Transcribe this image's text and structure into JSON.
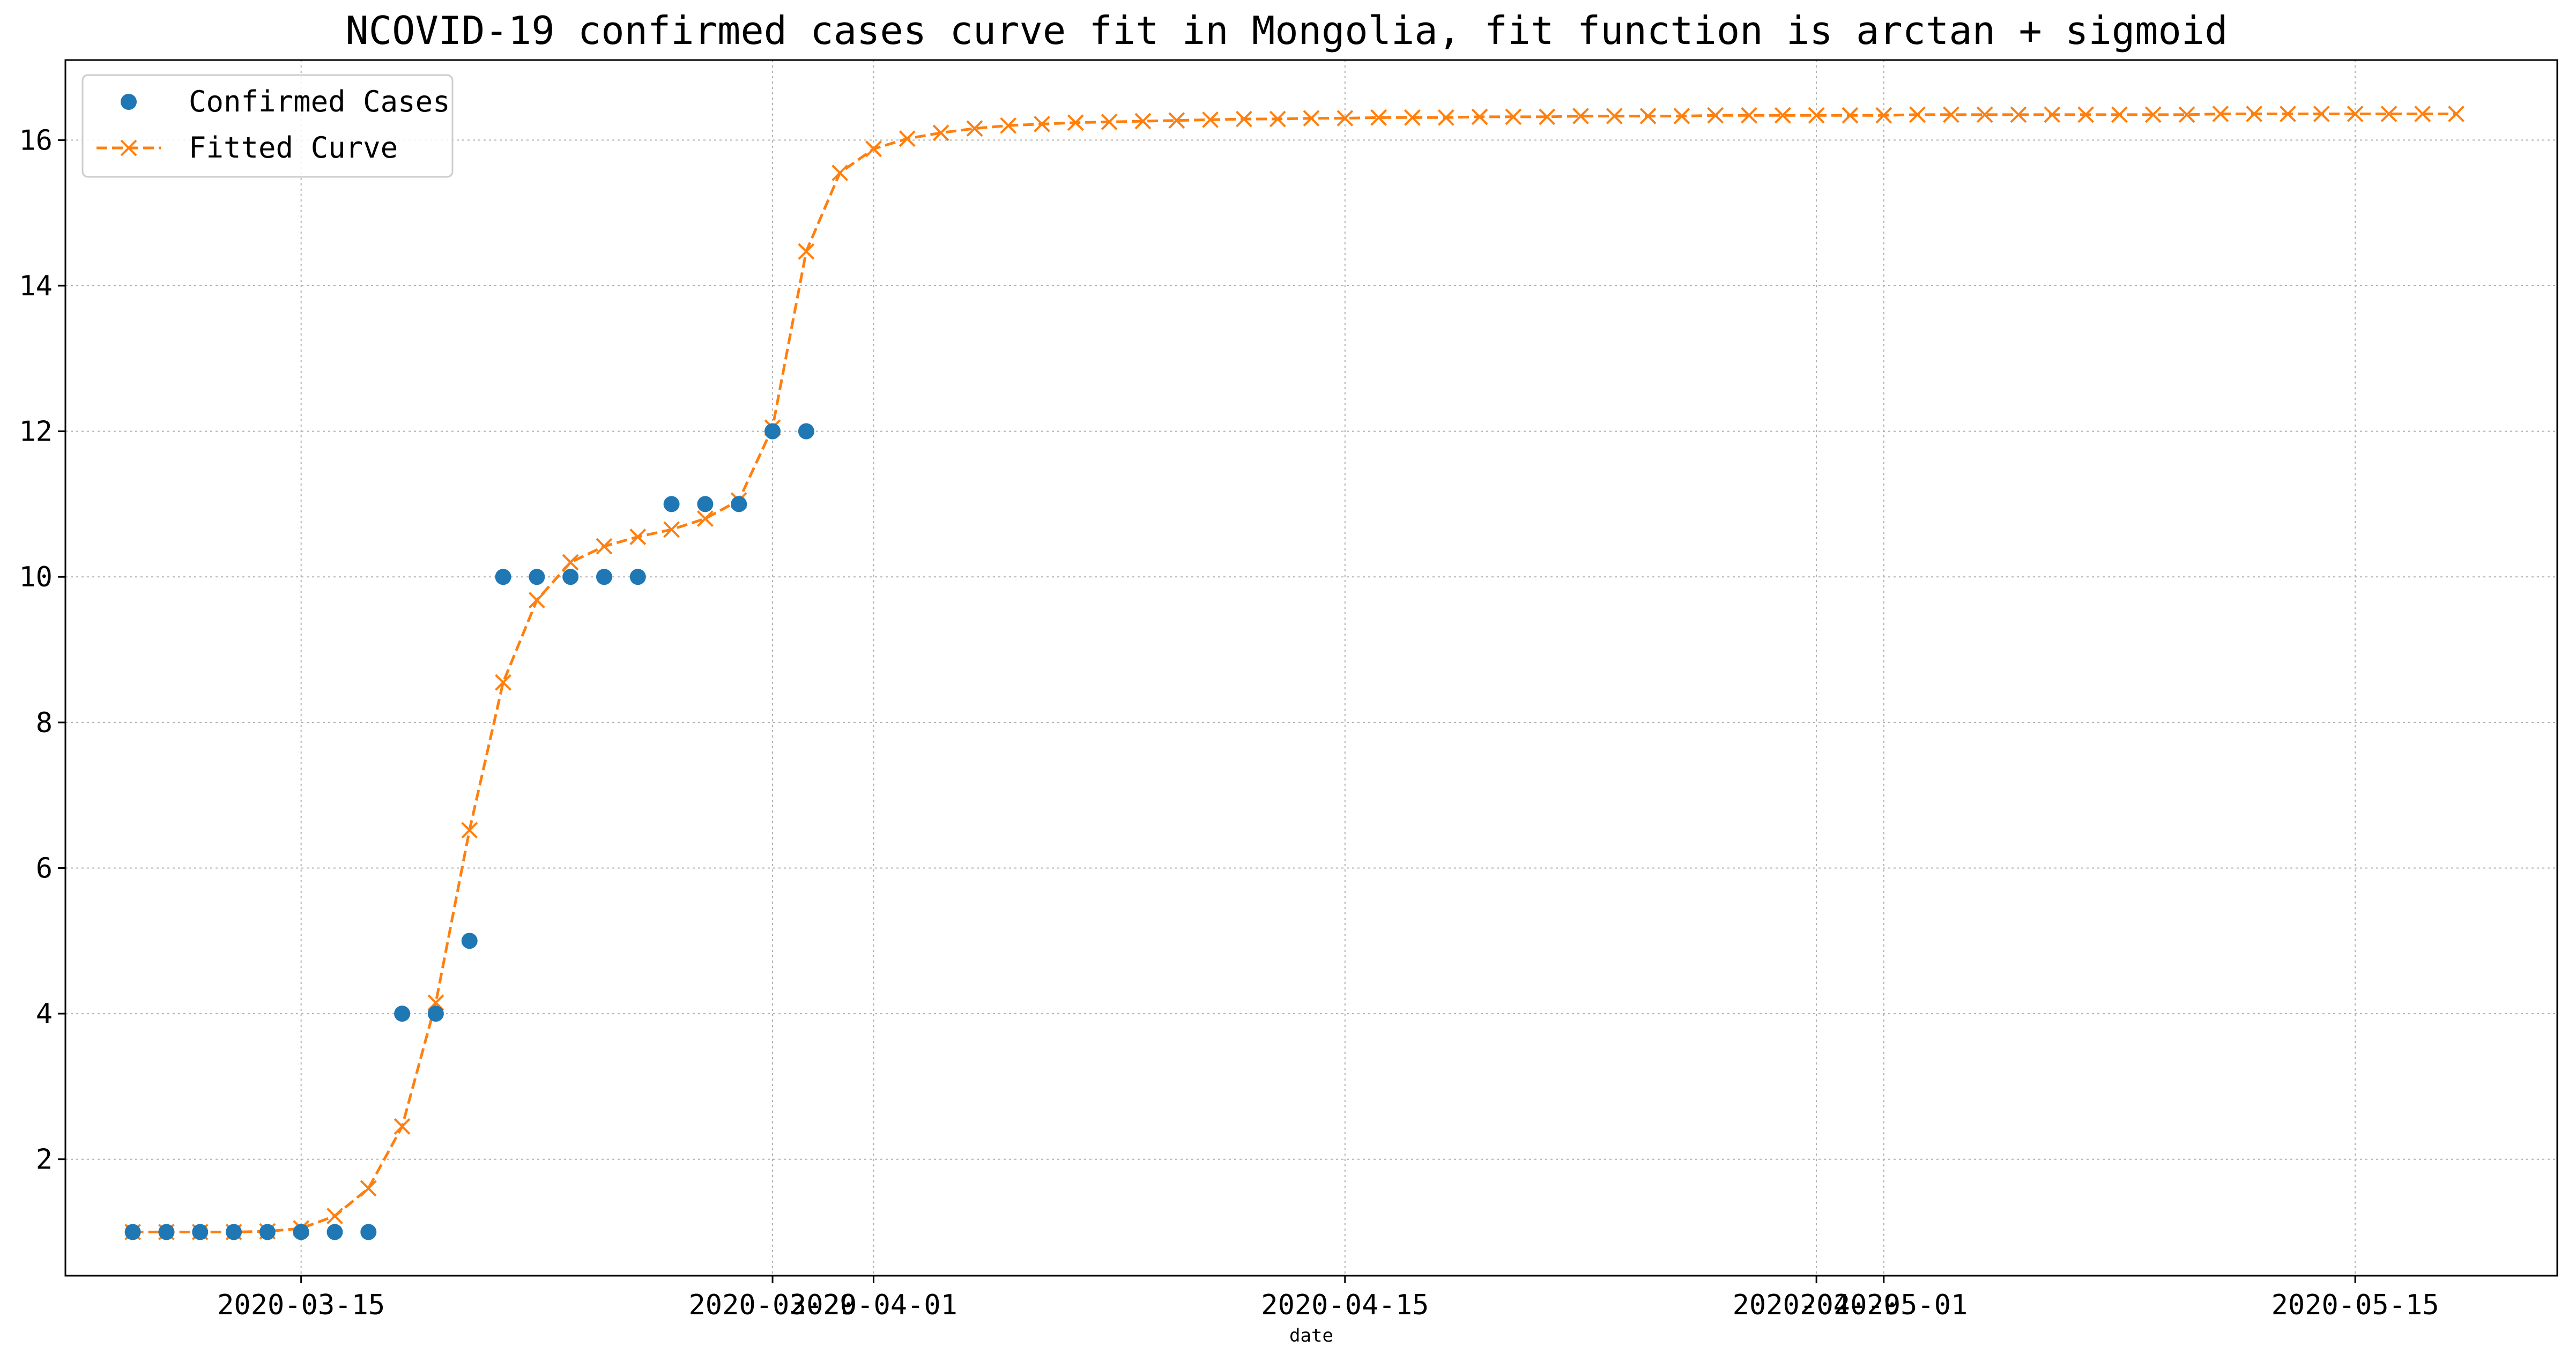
{
  "chart_data": {
    "type": "line",
    "title": "NCOVID-19 confirmed cases curve fit in Mongolia, fit function is arctan + sigmoid",
    "xlabel": "date",
    "ylabel": "",
    "x_axis_type": "date",
    "xlim": [
      "2020-03-08",
      "2020-05-21"
    ],
    "ylim": [
      0.4,
      17.1
    ],
    "grid": true,
    "legend_placement": "top-left",
    "x_ticks": [
      {
        "date": "2020-03-15",
        "label": "2020-03-15"
      },
      {
        "date": "2020-03-29",
        "label": "2020-03-29"
      },
      {
        "date": "2020-04-01",
        "label": "2020-04-01"
      },
      {
        "date": "2020-04-15",
        "label": "2020-04-15"
      },
      {
        "date": "2020-04-29",
        "label": "2020-04-29"
      },
      {
        "date": "2020-05-01",
        "label": "2020-05-01"
      },
      {
        "date": "2020-05-15",
        "label": "2020-05-15"
      }
    ],
    "y_ticks": [
      2,
      4,
      6,
      8,
      10,
      12,
      14,
      16
    ],
    "series": [
      {
        "name": "Confirmed Cases",
        "style": "scatter",
        "color": "#1f77b4",
        "marker": "circle",
        "points": [
          [
            "2020-03-10",
            1
          ],
          [
            "2020-03-11",
            1
          ],
          [
            "2020-03-12",
            1
          ],
          [
            "2020-03-13",
            1
          ],
          [
            "2020-03-14",
            1
          ],
          [
            "2020-03-15",
            1
          ],
          [
            "2020-03-16",
            1
          ],
          [
            "2020-03-17",
            1
          ],
          [
            "2020-03-18",
            4
          ],
          [
            "2020-03-19",
            4
          ],
          [
            "2020-03-20",
            5
          ],
          [
            "2020-03-21",
            10
          ],
          [
            "2020-03-22",
            10
          ],
          [
            "2020-03-23",
            10
          ],
          [
            "2020-03-24",
            10
          ],
          [
            "2020-03-25",
            10
          ],
          [
            "2020-03-26",
            11
          ],
          [
            "2020-03-27",
            11
          ],
          [
            "2020-03-28",
            11
          ],
          [
            "2020-03-29",
            12
          ],
          [
            "2020-03-30",
            12
          ]
        ]
      },
      {
        "name": "Fitted Curve",
        "style": "dashed-line",
        "color": "#ff7f0e",
        "marker": "x",
        "start_date": "2020-03-10",
        "step_days": 1,
        "values": [
          1.0,
          1.0,
          1.0,
          1.0,
          1.01,
          1.05,
          1.22,
          1.6,
          2.45,
          4.15,
          6.52,
          8.55,
          9.68,
          10.2,
          10.42,
          10.55,
          10.65,
          10.8,
          11.05,
          12.05,
          14.47,
          15.55,
          15.88,
          16.02,
          16.1,
          16.16,
          16.2,
          16.22,
          16.24,
          16.25,
          16.26,
          16.27,
          16.28,
          16.29,
          16.29,
          16.3,
          16.3,
          16.31,
          16.31,
          16.31,
          16.32,
          16.32,
          16.32,
          16.33,
          16.33,
          16.33,
          16.33,
          16.34,
          16.34,
          16.34,
          16.34,
          16.34,
          16.34,
          16.35,
          16.35,
          16.35,
          16.35,
          16.35,
          16.35,
          16.35,
          16.35,
          16.35,
          16.36,
          16.36,
          16.36,
          16.36,
          16.36,
          16.36,
          16.36,
          16.36
        ]
      }
    ]
  }
}
